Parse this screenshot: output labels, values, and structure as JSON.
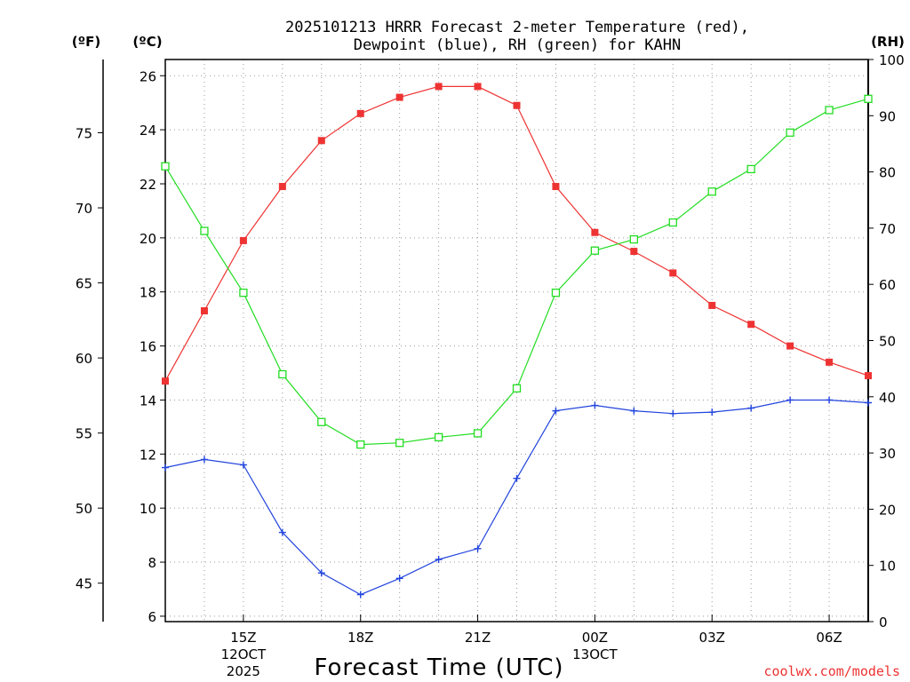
{
  "chart_data": {
    "type": "line",
    "title_line1": "2025101213 HRRR Forecast 2-meter Temperature (red),",
    "title_line2": "Dewpoint (blue), RH (green) for KAHN",
    "xlabel": "Forecast Time (UTC)",
    "unit_f": "(ºF)",
    "unit_c": "(ºC)",
    "unit_rh": "(RH)",
    "credit": "coolwx.com/models",
    "colors": {
      "temperature": "#ee3333",
      "dewpoint": "#2244dd",
      "rh": "#22dd22"
    },
    "x_hours": [
      13,
      14,
      15,
      16,
      17,
      18,
      19,
      20,
      21,
      22,
      23,
      24,
      25,
      26,
      27,
      28,
      29,
      30,
      31
    ],
    "xlim": [
      13,
      31
    ],
    "x_ticks": [
      {
        "hour": 15,
        "label": "15Z",
        "sub1": "12OCT",
        "sub2": "2025"
      },
      {
        "hour": 18,
        "label": "18Z",
        "sub1": "",
        "sub2": ""
      },
      {
        "hour": 21,
        "label": "21Z",
        "sub1": "",
        "sub2": ""
      },
      {
        "hour": 24,
        "label": "00Z",
        "sub1": "13OCT",
        "sub2": ""
      },
      {
        "hour": 27,
        "label": "03Z",
        "sub1": "",
        "sub2": ""
      },
      {
        "hour": 30,
        "label": "06Z",
        "sub1": "",
        "sub2": ""
      }
    ],
    "ylim_c": [
      5.8,
      26.6
    ],
    "ylim_rh": [
      0,
      100
    ],
    "yticks_c": [
      6,
      8,
      10,
      12,
      14,
      16,
      18,
      20,
      22,
      24,
      26
    ],
    "yticks_f": [
      45,
      50,
      55,
      60,
      65,
      70,
      75
    ],
    "yticks_rh": [
      0,
      10,
      20,
      30,
      40,
      50,
      60,
      70,
      80,
      90,
      100
    ],
    "series": [
      {
        "name": "Temperature",
        "unit": "°C",
        "color": "#ee3333",
        "marker": "filled-square",
        "values": [
          14.7,
          17.3,
          19.9,
          21.9,
          23.6,
          24.6,
          25.2,
          25.6,
          25.6,
          24.9,
          21.9,
          20.2,
          19.5,
          18.7,
          17.5,
          16.8,
          16.0,
          15.4,
          14.9
        ]
      },
      {
        "name": "Dewpoint",
        "unit": "°C",
        "color": "#2244dd",
        "marker": "plus",
        "values": [
          11.5,
          11.8,
          11.6,
          9.1,
          7.6,
          6.8,
          7.4,
          8.1,
          8.5,
          11.1,
          13.6,
          13.8,
          13.6,
          13.5,
          13.55,
          13.7,
          14.0,
          14.0,
          13.9
        ]
      },
      {
        "name": "RH",
        "unit": "%",
        "color": "#22dd22",
        "marker": "open-square",
        "values": [
          81,
          69.5,
          58.5,
          44,
          35.5,
          31.5,
          31.8,
          32.8,
          33.5,
          41.5,
          58.5,
          66,
          68,
          71,
          76.5,
          80.5,
          87,
          91,
          93
        ]
      }
    ]
  }
}
